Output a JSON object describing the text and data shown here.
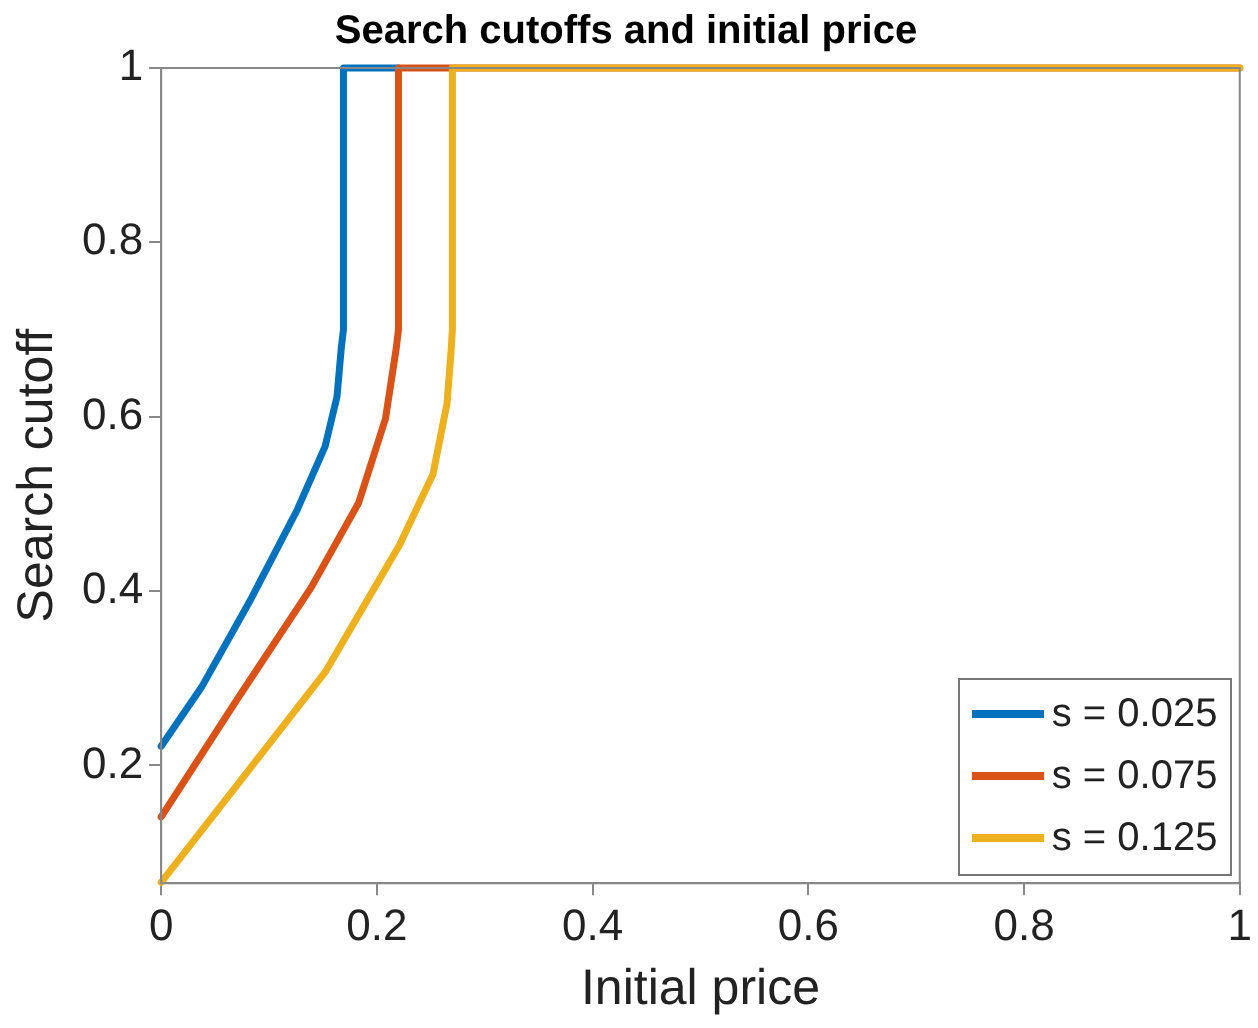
{
  "chart_data": {
    "type": "line",
    "title": "Search cutoffs and initial price",
    "xlabel": "Initial price",
    "ylabel": "Search cutoff",
    "xlim": [
      0,
      1
    ],
    "xticks": [
      0,
      0.2,
      0.4,
      0.6,
      0.8,
      1
    ],
    "ylim": [
      0.065,
      1
    ],
    "yticks": [
      0.2,
      0.4,
      0.6,
      0.8,
      1
    ],
    "grid": false,
    "legend": "bottom right",
    "marker": "none",
    "line_style": "solid",
    "series": [
      {
        "name": "s = 0.025",
        "color": "#0072bd",
        "x": [
          0,
          0.038,
          0.082,
          0.126,
          0.152,
          0.163,
          0.167,
          0.169,
          0.169,
          0.22
        ],
        "values": [
          0.222,
          0.291,
          0.388,
          0.493,
          0.566,
          0.623,
          0.679,
          0.7,
          1,
          1
        ]
      },
      {
        "name": "s = 0.075",
        "color": "#d95319",
        "x": [
          0,
          0.07,
          0.139,
          0.183,
          0.208,
          0.218,
          0.22,
          0.22,
          1
        ],
        "values": [
          0.141,
          0.275,
          0.404,
          0.501,
          0.598,
          0.679,
          0.7,
          1,
          1
        ]
      },
      {
        "name": "s = 0.125",
        "color": "#edb120",
        "x": [
          0,
          0.07,
          0.152,
          0.221,
          0.252,
          0.265,
          0.269,
          0.27,
          0.27,
          1
        ],
        "values": [
          0.066,
          0.177,
          0.307,
          0.453,
          0.534,
          0.615,
          0.679,
          0.7,
          1,
          1
        ]
      }
    ]
  }
}
